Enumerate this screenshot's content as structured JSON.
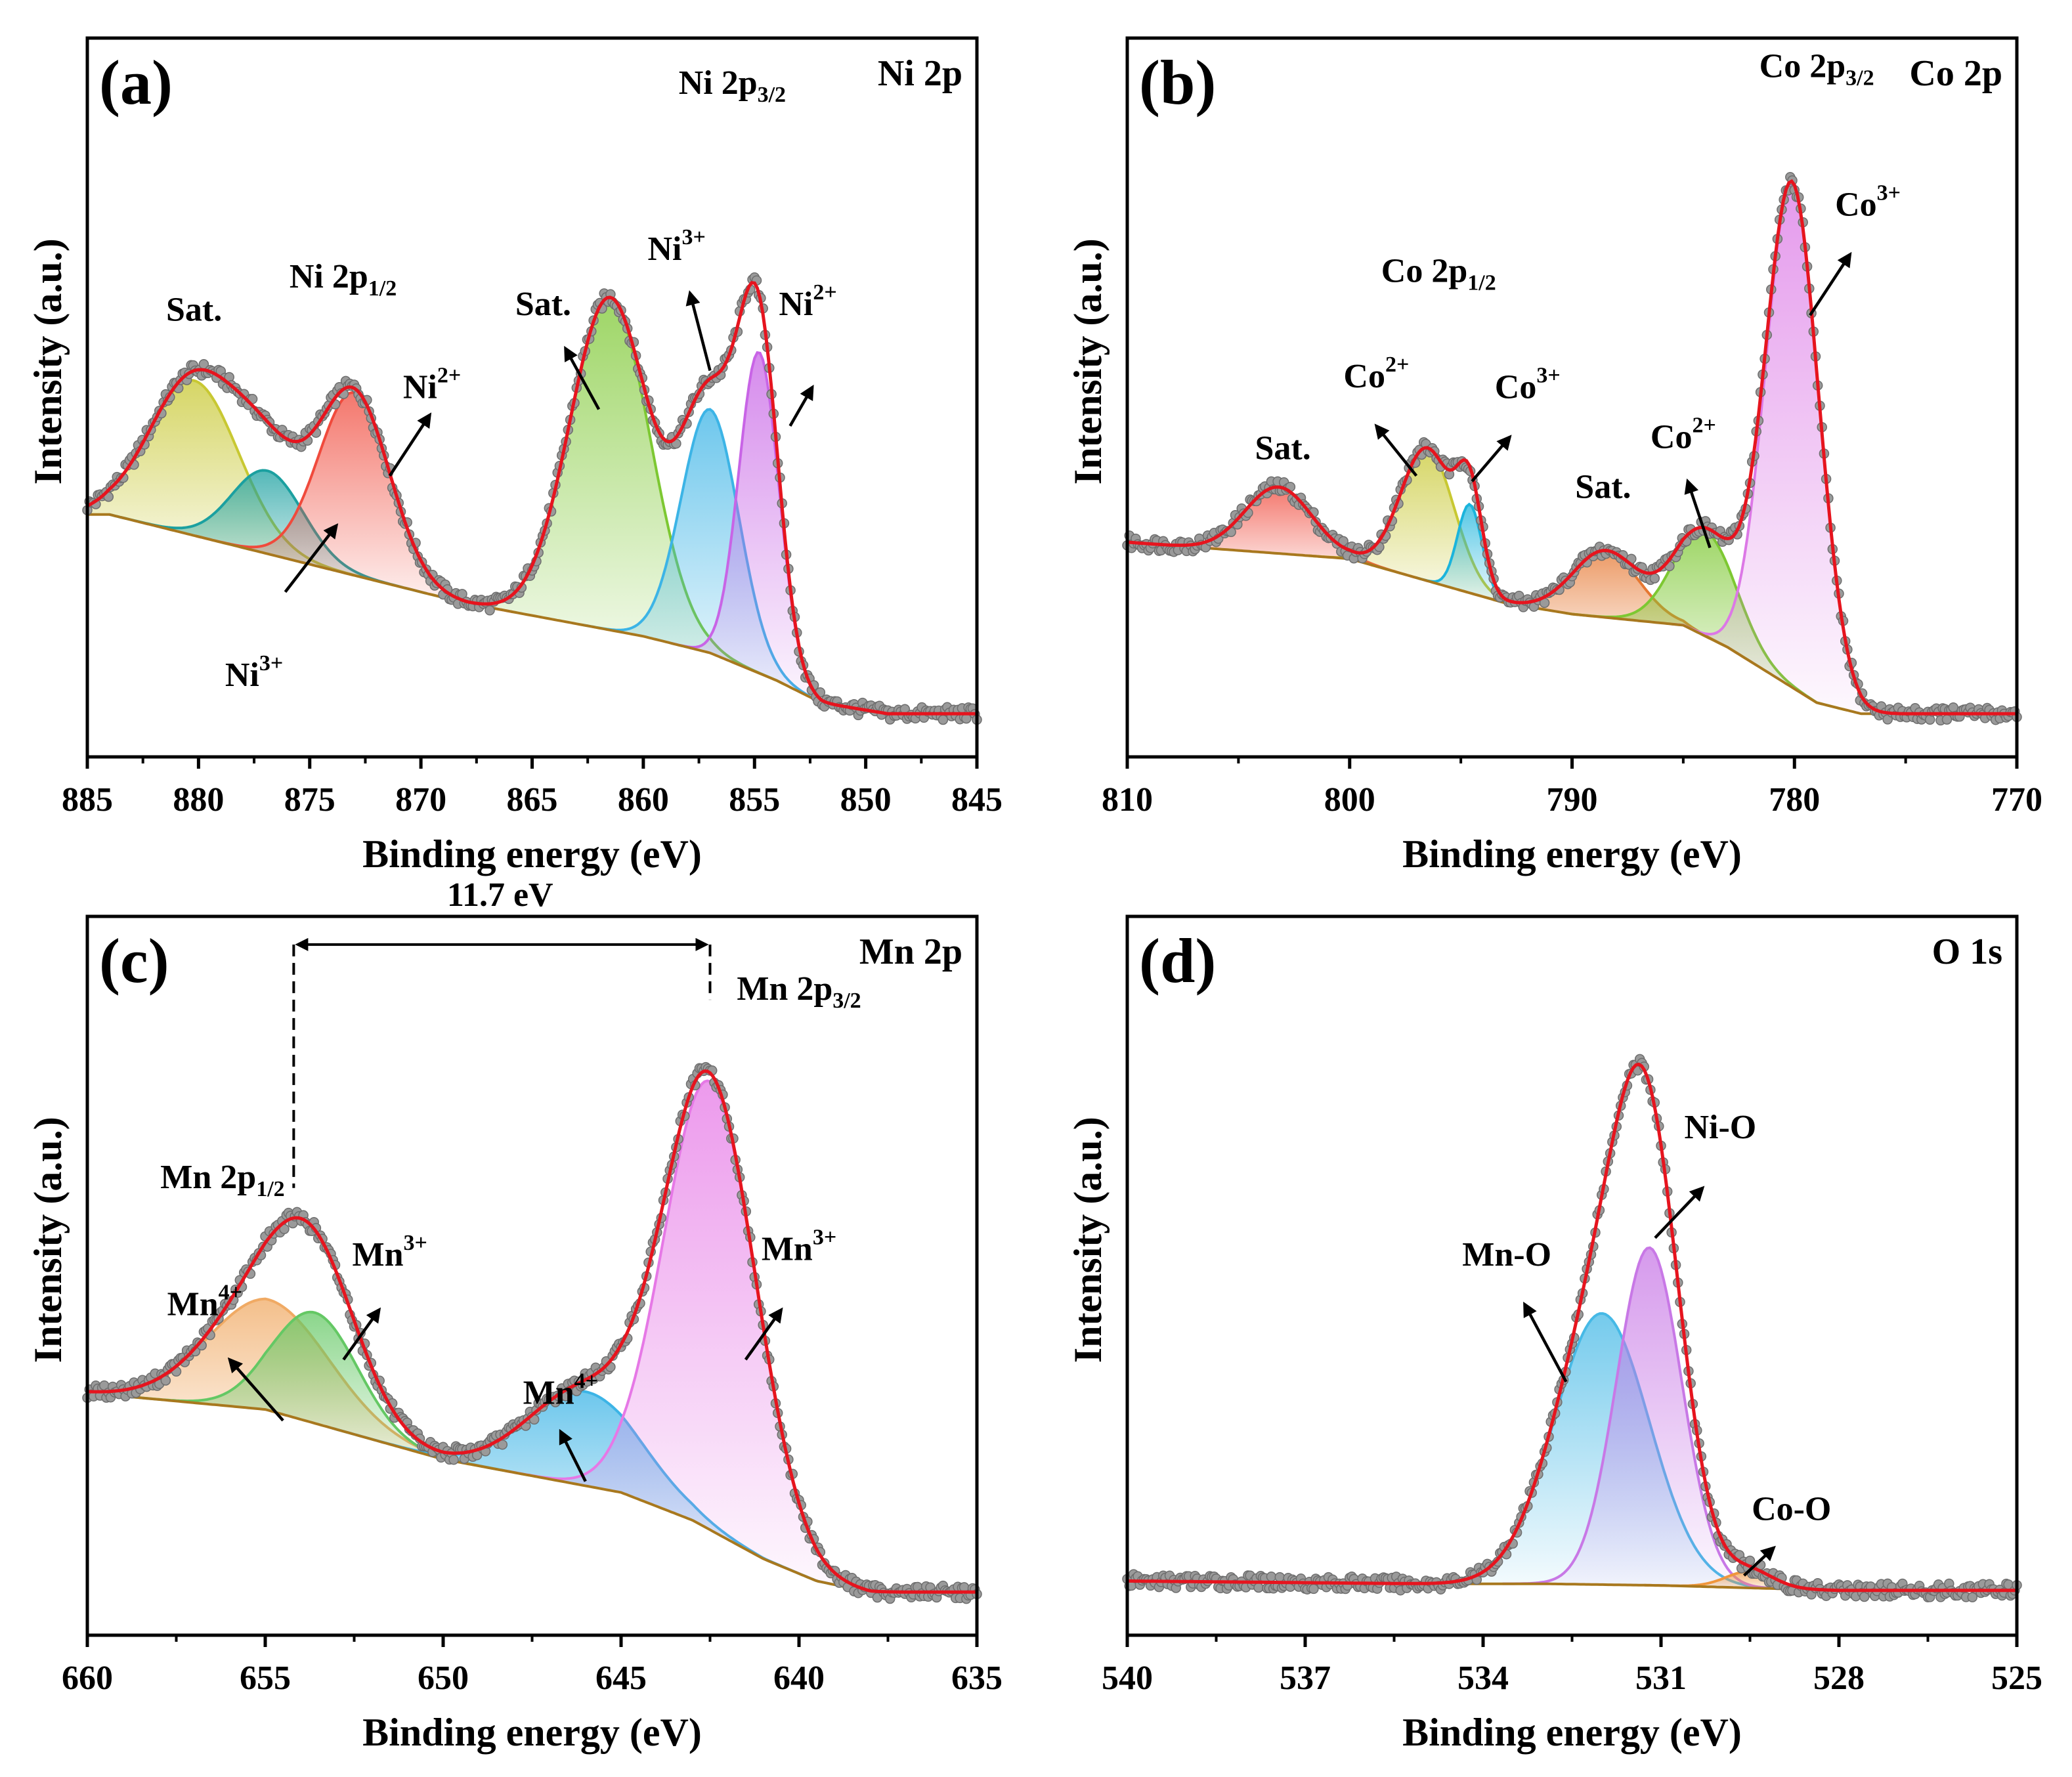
{
  "chart_data": [
    {
      "type": "line",
      "panel": "(a)",
      "title": "Ni 2p",
      "xlabel": "Binding energy (eV)",
      "ylabel": "Intensity (a.u.)",
      "xlim": [
        885,
        845
      ],
      "ylim": [
        0,
        1
      ],
      "xticks": [
        885,
        880,
        875,
        870,
        865,
        860,
        855,
        850,
        845
      ],
      "background": {
        "x": [
          884,
          875,
          868,
          860,
          857,
          854,
          852,
          849,
          845
        ],
        "y": [
          0.36,
          0.27,
          0.2,
          0.14,
          0.11,
          0.06,
          0.02,
          0.0,
          0.0
        ]
      },
      "components": [
        {
          "name": "Sat.",
          "center": 880.2,
          "amp": 0.28,
          "sigma": 2.0,
          "color": "#c8c832"
        },
        {
          "name": "Ni3+",
          "center": 876.9,
          "amp": 0.15,
          "sigma": 1.6,
          "color": "#1ba0a0"
        },
        {
          "name": "Ni2+",
          "center": 873.0,
          "amp": 0.33,
          "sigma": 1.6,
          "color": "#f04a3c"
        },
        {
          "name": "Sat.",
          "center": 861.5,
          "amp": 0.6,
          "sigma": 1.8,
          "color": "#7dc832"
        },
        {
          "name": "Ni3+",
          "center": 857.0,
          "amp": 0.44,
          "sigma": 1.3,
          "color": "#3cb4e6"
        },
        {
          "name": "Ni2+",
          "center": 854.8,
          "amp": 0.58,
          "sigma": 0.9,
          "color": "#c864e6"
        }
      ],
      "annotations": [
        {
          "base": "Sat.",
          "sup": "",
          "sub": "",
          "x": 880.2,
          "y": 0.71
        },
        {
          "base": "Ni 2p",
          "sup": "",
          "sub": "1/2",
          "x": 873.5,
          "y": 0.77
        },
        {
          "base": "Ni",
          "sup": "2+",
          "sub": "",
          "x": 869.5,
          "y": 0.57
        },
        {
          "base": "Ni",
          "sup": "3+",
          "sub": "",
          "x": 877.5,
          "y": 0.05
        },
        {
          "base": "Sat.",
          "sup": "",
          "sub": "",
          "x": 864.5,
          "y": 0.72
        },
        {
          "base": "Ni",
          "sup": "3+",
          "sub": "",
          "x": 858.5,
          "y": 0.82
        },
        {
          "base": "Ni 2p",
          "sup": "",
          "sub": "3/2",
          "x": 856.0,
          "y": 1.12
        },
        {
          "base": "Ni",
          "sup": "2+",
          "sub": "",
          "x": 852.6,
          "y": 0.72
        }
      ],
      "arrows": [
        {
          "from": [
            876.1,
            0.22
          ],
          "to": [
            873.8,
            0.34
          ]
        },
        {
          "from": [
            871.4,
            0.43
          ],
          "to": [
            869.6,
            0.54
          ]
        },
        {
          "from": [
            862.0,
            0.55
          ],
          "to": [
            863.5,
            0.66
          ]
        },
        {
          "from": [
            857.0,
            0.62
          ],
          "to": [
            857.9,
            0.76
          ]
        },
        {
          "from": [
            853.4,
            0.52
          ],
          "to": [
            852.4,
            0.59
          ]
        }
      ]
    },
    {
      "type": "line",
      "panel": "(b)",
      "title": "Co 2p",
      "xlabel": "Binding energy (eV)",
      "ylabel": "Intensity (a.u.)",
      "xlim": [
        810,
        770
      ],
      "ylim": [
        0,
        1
      ],
      "xticks": [
        810,
        800,
        790,
        780,
        770
      ],
      "background": {
        "x": [
          810,
          800,
          793,
          790,
          785,
          783,
          781,
          779,
          777,
          770
        ],
        "y": [
          0.31,
          0.28,
          0.2,
          0.18,
          0.16,
          0.12,
          0.07,
          0.02,
          0.0,
          0.0
        ]
      },
      "components": [
        {
          "name": "Sat.",
          "center": 803.2,
          "amp": 0.12,
          "sigma": 1.5,
          "color": "#f04a3c"
        },
        {
          "name": "Co2+",
          "center": 796.5,
          "amp": 0.24,
          "sigma": 1.2,
          "color": "#c8c832"
        },
        {
          "name": "Co3+",
          "center": 794.6,
          "amp": 0.16,
          "sigma": 0.55,
          "color": "#1bb4dc"
        },
        {
          "name": "Sat.",
          "center": 788.5,
          "amp": 0.12,
          "sigma": 1.5,
          "color": "#e67832"
        },
        {
          "name": "Co2+",
          "center": 784.0,
          "amp": 0.19,
          "sigma": 1.4,
          "color": "#7dc832"
        },
        {
          "name": "Co3+",
          "center": 780.1,
          "amp": 0.91,
          "sigma": 1.2,
          "color": "#dc78e6"
        }
      ],
      "annotations": [
        {
          "base": "Co 2p",
          "sup": "",
          "sub": "3/2",
          "x": 779.0,
          "y": 1.15
        },
        {
          "base": "Co",
          "sup": "3+",
          "sub": "",
          "x": 776.7,
          "y": 0.9
        },
        {
          "base": "Co 2p",
          "sup": "",
          "sub": "1/2",
          "x": 796.0,
          "y": 0.78
        },
        {
          "base": "Co",
          "sup": "2+",
          "sub": "",
          "x": 798.8,
          "y": 0.59
        },
        {
          "base": "Co",
          "sup": "3+",
          "sub": "",
          "x": 792.0,
          "y": 0.57
        },
        {
          "base": "Sat.",
          "sup": "",
          "sub": "",
          "x": 803.0,
          "y": 0.46
        },
        {
          "base": "Sat.",
          "sup": "",
          "sub": "",
          "x": 788.6,
          "y": 0.39
        },
        {
          "base": "Co",
          "sup": "2+",
          "sub": "",
          "x": 785.0,
          "y": 0.48
        }
      ],
      "arrows": [
        {
          "from": [
            779.3,
            0.72
          ],
          "to": [
            777.5,
            0.83
          ]
        },
        {
          "from": [
            797.0,
            0.43
          ],
          "to": [
            798.8,
            0.52
          ]
        },
        {
          "from": [
            794.5,
            0.42
          ],
          "to": [
            792.8,
            0.5
          ]
        },
        {
          "from": [
            783.8,
            0.3
          ],
          "to": [
            784.8,
            0.42
          ]
        }
      ]
    },
    {
      "type": "line",
      "panel": "(c)",
      "title": "Mn 2p",
      "xlabel": "Binding energy (eV)",
      "ylabel": "Intensity (a.u.)",
      "xlim": [
        660,
        635
      ],
      "ylim": [
        0,
        1
      ],
      "xticks": [
        660,
        655,
        650,
        645,
        640,
        635
      ],
      "background": {
        "x": [
          660,
          655,
          650,
          645,
          643,
          641,
          639.5,
          638,
          635
        ],
        "y": [
          0.36,
          0.33,
          0.24,
          0.18,
          0.13,
          0.06,
          0.02,
          0.0,
          0.0
        ]
      },
      "components": [
        {
          "name": "Mn4+",
          "center": 654.9,
          "amp": 0.2,
          "sigma": 1.7,
          "color": "#f0aa64"
        },
        {
          "name": "Mn3+",
          "center": 653.6,
          "amp": 0.2,
          "sigma": 1.2,
          "color": "#64c864"
        },
        {
          "name": "Mn4+",
          "center": 646.0,
          "amp": 0.17,
          "sigma": 1.6,
          "color": "#3cb4e6"
        },
        {
          "name": "Mn3+",
          "center": 642.5,
          "amp": 0.81,
          "sigma": 1.3,
          "color": "#e678e6"
        }
      ],
      "annotations": [
        {
          "base": "Mn 2p",
          "sup": "",
          "sub": "3/2",
          "x": 640.0,
          "y": 1.07
        },
        {
          "base": "Mn 2p",
          "sup": "",
          "sub": "1/2",
          "x": 656.2,
          "y": 0.73
        },
        {
          "base": "11.7 eV",
          "sup": "",
          "sub": "",
          "x": 648.4,
          "y": 1.24
        },
        {
          "base": "Mn",
          "sup": "3+",
          "sub": "",
          "x": 651.5,
          "y": 0.59
        },
        {
          "base": "Mn",
          "sup": "4+",
          "sub": "",
          "x": 656.7,
          "y": 0.5
        },
        {
          "base": "Mn",
          "sup": "4+",
          "sub": "",
          "x": 646.7,
          "y": 0.34
        },
        {
          "base": "Mn",
          "sup": "3+",
          "sub": "",
          "x": 640.0,
          "y": 0.6
        }
      ],
      "arrows": [
        {
          "from": [
            652.8,
            0.42
          ],
          "to": [
            651.8,
            0.51
          ]
        },
        {
          "from": [
            654.5,
            0.31
          ],
          "to": [
            656.0,
            0.42
          ]
        },
        {
          "from": [
            646.0,
            0.2
          ],
          "to": [
            646.7,
            0.29
          ]
        },
        {
          "from": [
            641.5,
            0.42
          ],
          "to": [
            640.5,
            0.51
          ]
        }
      ],
      "dimension": {
        "x1": 654.2,
        "x2": 642.5,
        "y": 1.17,
        "y_bottom_left": 0.73,
        "y_bottom_right": 1.07
      }
    },
    {
      "type": "line",
      "panel": "(d)",
      "title": "O 1s",
      "xlabel": "Binding energy (eV)",
      "ylabel": "Intensity (a.u.)",
      "xlim": [
        540,
        525
      ],
      "ylim": [
        0,
        1
      ],
      "xticks": [
        540,
        537,
        534,
        531,
        528,
        525
      ],
      "background": {
        "x": [
          540,
          535,
          533,
          531,
          529,
          528,
          525
        ],
        "y": [
          0.02,
          0.015,
          0.015,
          0.012,
          0.006,
          0.003,
          0.003
        ]
      },
      "components": [
        {
          "name": "Mn-O",
          "center": 532.0,
          "amp": 0.49,
          "sigma": 0.8,
          "color": "#46b9e6"
        },
        {
          "name": "Ni-O",
          "center": 531.2,
          "amp": 0.61,
          "sigma": 0.55,
          "color": "#c878e6"
        },
        {
          "name": "Co-O",
          "center": 529.5,
          "amp": 0.03,
          "sigma": 0.4,
          "color": "#f0963c"
        }
      ],
      "annotations": [
        {
          "base": "Ni-O",
          "sup": "",
          "sub": "",
          "x": 530.0,
          "y": 0.82
        },
        {
          "base": "Mn-O",
          "sup": "",
          "sub": "",
          "x": 533.6,
          "y": 0.59
        },
        {
          "base": "Co-O",
          "sup": "",
          "sub": "",
          "x": 528.8,
          "y": 0.13
        }
      ],
      "arrows": [
        {
          "from": [
            531.1,
            0.64
          ],
          "to": [
            530.3,
            0.73
          ]
        },
        {
          "from": [
            532.6,
            0.38
          ],
          "to": [
            533.3,
            0.52
          ]
        },
        {
          "from": [
            529.6,
            0.03
          ],
          "to": [
            529.1,
            0.08
          ]
        }
      ]
    }
  ]
}
